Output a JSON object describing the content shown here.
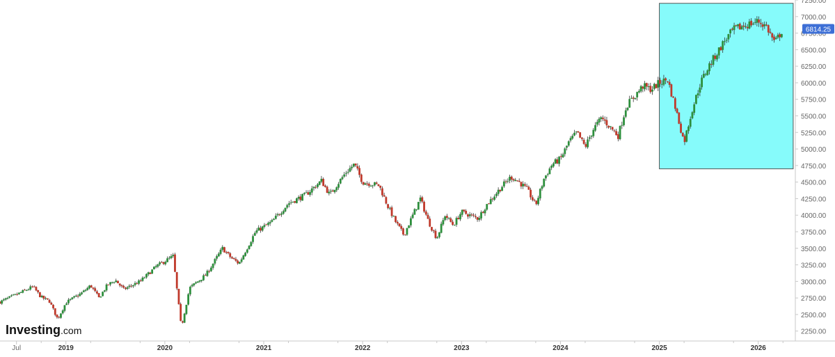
{
  "colors": {
    "up_candle": "#2d8f3c",
    "down_candle": "#c0392b",
    "wick": "#333333",
    "axis_line": "#c8c8c8",
    "axis_text": "#666666",
    "highlight_fill": "#86fbfb",
    "highlight_stroke": "#555555",
    "price_badge": "#3d6fd6",
    "price_badge_text": "#ffffff"
  },
  "branding": {
    "logo_main": "Investing",
    "logo_suffix": ".com"
  },
  "chart_data": {
    "type": "candlestick",
    "title": "",
    "xlabel": "",
    "ylabel": "",
    "ylim": [
      2100,
      7250
    ],
    "y_ticks": [
      "2250.00",
      "2500.00",
      "2750.00",
      "3000.00",
      "3250.00",
      "3500.00",
      "3750.00",
      "4000.00",
      "4250.00",
      "4500.00",
      "4750.00",
      "5000.00",
      "5250.00",
      "5500.00",
      "5750.00",
      "6000.00",
      "6250.00",
      "6500.00",
      "6750.00",
      "7000.00",
      "7250.00"
    ],
    "x_ticks": [
      "Jul",
      "2019",
      "2020",
      "2021",
      "2022",
      "2023",
      "2024",
      "2025",
      "2026"
    ],
    "last_price": 6814.25,
    "last_price_label": "6814.25",
    "anchors": [
      [
        "2018-05",
        2690
      ],
      [
        "2018-07",
        2800
      ],
      [
        "2018-09",
        2920
      ],
      [
        "2018-10",
        2760
      ],
      [
        "2018-11",
        2700
      ],
      [
        "2018-12",
        2430
      ],
      [
        "2019-01",
        2680
      ],
      [
        "2019-03",
        2830
      ],
      [
        "2019-04",
        2940
      ],
      [
        "2019-05",
        2750
      ],
      [
        "2019-06",
        2940
      ],
      [
        "2019-07",
        3020
      ],
      [
        "2019-08",
        2880
      ],
      [
        "2019-10",
        3000
      ],
      [
        "2019-12",
        3230
      ],
      [
        "2020-02",
        3380
      ],
      [
        "2020-03",
        2300
      ],
      [
        "2020-04",
        2900
      ],
      [
        "2020-06",
        3100
      ],
      [
        "2020-08",
        3500
      ],
      [
        "2020-09",
        3360
      ],
      [
        "2020-10",
        3270
      ],
      [
        "2020-12",
        3750
      ],
      [
        "2021-02",
        3900
      ],
      [
        "2021-04",
        4180
      ],
      [
        "2021-06",
        4300
      ],
      [
        "2021-08",
        4520
      ],
      [
        "2021-09",
        4310
      ],
      [
        "2021-11",
        4650
      ],
      [
        "2021-12",
        4770
      ],
      [
        "2022-01",
        4500
      ],
      [
        "2022-03",
        4450
      ],
      [
        "2022-04",
        4150
      ],
      [
        "2022-05",
        3900
      ],
      [
        "2022-06",
        3700
      ],
      [
        "2022-08",
        4250
      ],
      [
        "2022-09",
        3900
      ],
      [
        "2022-10",
        3650
      ],
      [
        "2022-11",
        4000
      ],
      [
        "2022-12",
        3850
      ],
      [
        "2023-01",
        4050
      ],
      [
        "2023-02",
        4000
      ],
      [
        "2023-03",
        3950
      ],
      [
        "2023-04",
        4150
      ],
      [
        "2023-06",
        4450
      ],
      [
        "2023-07",
        4580
      ],
      [
        "2023-08",
        4500
      ],
      [
        "2023-09",
        4380
      ],
      [
        "2023-10",
        4150
      ],
      [
        "2023-11",
        4550
      ],
      [
        "2023-12",
        4770
      ],
      [
        "2024-01",
        4850
      ],
      [
        "2024-02",
        5100
      ],
      [
        "2024-03",
        5250
      ],
      [
        "2024-04",
        5030
      ],
      [
        "2024-05",
        5300
      ],
      [
        "2024-06",
        5470
      ],
      [
        "2024-08",
        5200
      ],
      [
        "2024-09",
        5650
      ],
      [
        "2024-11",
        5950
      ],
      [
        "2024-12",
        5900
      ],
      [
        "2025-01",
        6000
      ],
      [
        "2025-02",
        6050
      ],
      [
        "2025-03",
        5600
      ],
      [
        "2025-04",
        5100
      ],
      [
        "2025-05",
        5600
      ],
      [
        "2025-06",
        6000
      ],
      [
        "2025-07",
        6250
      ],
      [
        "2025-08",
        6450
      ],
      [
        "2025-09",
        6650
      ],
      [
        "2025-10",
        6800
      ],
      [
        "2025-11",
        6850
      ],
      [
        "2026-01",
        6930
      ],
      [
        "2026-02",
        6850
      ],
      [
        "2026-03",
        6600
      ],
      [
        "2026-04",
        6814.25
      ]
    ],
    "highlight_range": {
      "x": [
        "2025-01",
        "2026-05"
      ],
      "y": [
        4700,
        7200
      ]
    },
    "legend": ""
  }
}
